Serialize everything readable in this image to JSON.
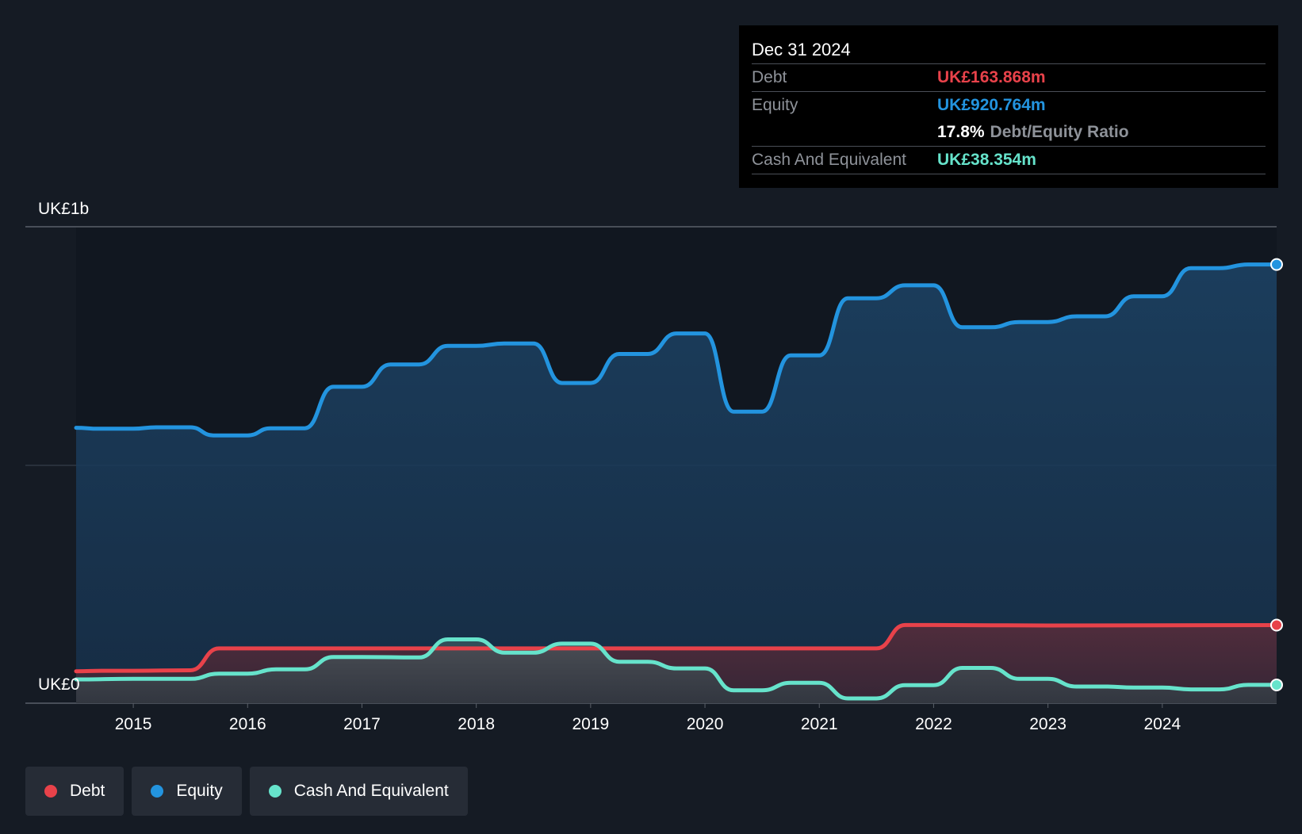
{
  "colors": {
    "debt": "#e8424a",
    "equity": "#2394df",
    "cash": "#66e3cb",
    "background": "#151b24"
  },
  "tooltip": {
    "date": "Dec 31 2024",
    "rows": [
      {
        "label": "Debt",
        "value": "UK£163.868m",
        "color": "#e8424a"
      },
      {
        "label": "Equity",
        "value": "UK£920.764m",
        "color": "#2394df"
      },
      {
        "label": "",
        "ratio_value": "17.8%",
        "ratio_label": "Debt/Equity Ratio"
      },
      {
        "label": "Cash And Equivalent",
        "value": "UK£38.354m",
        "color": "#66e3cb"
      }
    ]
  },
  "legend": [
    {
      "label": "Debt",
      "color": "#e8424a"
    },
    {
      "label": "Equity",
      "color": "#2394df"
    },
    {
      "label": "Cash And Equivalent",
      "color": "#66e3cb"
    }
  ],
  "chart_data": {
    "type": "area",
    "y_labels": {
      "top": "UK£1b",
      "bottom": "UK£0"
    },
    "ylim": [
      0,
      1000
    ],
    "xlim": [
      2014.5,
      2025.0
    ],
    "x_ticks": [
      "2015",
      "2016",
      "2017",
      "2018",
      "2019",
      "2020",
      "2021",
      "2022",
      "2023",
      "2024"
    ],
    "grid": true,
    "series": [
      {
        "name": "Equity",
        "color": "#2394df",
        "points": [
          [
            2014.5,
            578
          ],
          [
            2014.7,
            576
          ],
          [
            2015.0,
            576
          ],
          [
            2015.2,
            579
          ],
          [
            2015.5,
            579
          ],
          [
            2015.7,
            562
          ],
          [
            2016.0,
            562
          ],
          [
            2016.2,
            577
          ],
          [
            2016.5,
            577
          ],
          [
            2016.75,
            664
          ],
          [
            2017.0,
            664
          ],
          [
            2017.25,
            711
          ],
          [
            2017.5,
            711
          ],
          [
            2017.75,
            750
          ],
          [
            2018.0,
            750
          ],
          [
            2018.25,
            755
          ],
          [
            2018.5,
            755
          ],
          [
            2018.75,
            672
          ],
          [
            2019.0,
            672
          ],
          [
            2019.25,
            733
          ],
          [
            2019.5,
            733
          ],
          [
            2019.75,
            776
          ],
          [
            2020.0,
            776
          ],
          [
            2020.25,
            612
          ],
          [
            2020.5,
            612
          ],
          [
            2020.75,
            730
          ],
          [
            2021.0,
            730
          ],
          [
            2021.25,
            850
          ],
          [
            2021.5,
            850
          ],
          [
            2021.75,
            877
          ],
          [
            2022.0,
            877
          ],
          [
            2022.25,
            789
          ],
          [
            2022.5,
            789
          ],
          [
            2022.75,
            800
          ],
          [
            2023.0,
            800
          ],
          [
            2023.25,
            812
          ],
          [
            2023.5,
            812
          ],
          [
            2023.75,
            854
          ],
          [
            2024.0,
            854
          ],
          [
            2024.25,
            913
          ],
          [
            2024.5,
            913
          ],
          [
            2024.75,
            920.764
          ],
          [
            2025.0,
            920.764
          ]
        ]
      },
      {
        "name": "Debt",
        "color": "#e8424a",
        "points": [
          [
            2014.5,
            67
          ],
          [
            2014.75,
            68
          ],
          [
            2015.0,
            68
          ],
          [
            2015.5,
            69
          ],
          [
            2015.75,
            115
          ],
          [
            2016.0,
            115
          ],
          [
            2021.5,
            115
          ],
          [
            2021.75,
            164
          ],
          [
            2022.0,
            164
          ],
          [
            2023.0,
            163
          ],
          [
            2025.0,
            163.868
          ]
        ]
      },
      {
        "name": "Cash And Equivalent",
        "color": "#66e3cb",
        "points": [
          [
            2014.5,
            50
          ],
          [
            2015.0,
            51
          ],
          [
            2015.5,
            51
          ],
          [
            2015.75,
            62
          ],
          [
            2016.0,
            62
          ],
          [
            2016.25,
            71
          ],
          [
            2016.5,
            71
          ],
          [
            2016.75,
            97
          ],
          [
            2017.0,
            97
          ],
          [
            2017.5,
            96
          ],
          [
            2017.75,
            134
          ],
          [
            2018.0,
            134
          ],
          [
            2018.25,
            106
          ],
          [
            2018.5,
            106
          ],
          [
            2018.75,
            125
          ],
          [
            2019.0,
            125
          ],
          [
            2019.25,
            87
          ],
          [
            2019.5,
            87
          ],
          [
            2019.75,
            73
          ],
          [
            2020.0,
            73
          ],
          [
            2020.25,
            27
          ],
          [
            2020.5,
            27
          ],
          [
            2020.75,
            43
          ],
          [
            2021.0,
            43
          ],
          [
            2021.25,
            10
          ],
          [
            2021.5,
            10
          ],
          [
            2021.75,
            38
          ],
          [
            2022.0,
            38
          ],
          [
            2022.25,
            74
          ],
          [
            2022.5,
            74
          ],
          [
            2022.75,
            51
          ],
          [
            2023.0,
            51
          ],
          [
            2023.25,
            35
          ],
          [
            2023.5,
            35
          ],
          [
            2023.75,
            33
          ],
          [
            2024.0,
            33
          ],
          [
            2024.25,
            29
          ],
          [
            2024.5,
            29
          ],
          [
            2024.75,
            38.354
          ],
          [
            2025.0,
            38.354
          ]
        ]
      }
    ]
  }
}
